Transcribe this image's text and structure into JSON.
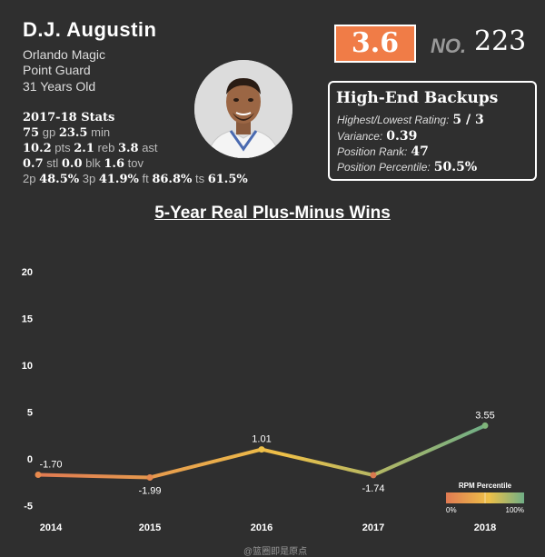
{
  "player": {
    "name": "D.J. Augustin",
    "team": "Orlando Magic",
    "position": "Point Guard",
    "age": "31 Years Old",
    "stats_title": "2017-18 Stats",
    "gp": "75",
    "min": "23.5",
    "pts": "10.2",
    "reb": "2.1",
    "ast": "3.8",
    "stl": "0.7",
    "blk": "0.0",
    "tov": "1.6",
    "p2": "48.5%",
    "p3": "41.9%",
    "ft": "86.8%",
    "ts": "61.5%",
    "labels": {
      "stats": "Stats",
      "gp": "gp",
      "min": "min",
      "pts": "pts",
      "reb": "reb",
      "ast": "ast",
      "stl": "stl",
      "blk": "blk",
      "tov": "tov",
      "p2": "2p",
      "p3": "3p",
      "ft": "ft",
      "ts": "ts"
    }
  },
  "rating": "3.6",
  "rank": {
    "label": "NO.",
    "number": "223"
  },
  "backups": {
    "title": "High-End Backups",
    "highest_lowest_label": "Highest/Lowest Rating:",
    "highest_lowest_value": "5 / 3",
    "variance_label": "Variance:",
    "variance_value": "0.39",
    "position_rank_label": "Position Rank:",
    "position_rank_value": "47",
    "position_percentile_label": "Position Percentile:",
    "position_percentile_value": "50.5%"
  },
  "chart_data": {
    "type": "line",
    "title": "5-Year Real Plus-Minus Wins",
    "x": [
      "2014",
      "2015",
      "2016",
      "2017",
      "2018"
    ],
    "values": [
      -1.7,
      -1.99,
      1.01,
      -1.74,
      3.55
    ],
    "data_labels": [
      "-1.70",
      "-1.99",
      "1.01",
      "-1.74",
      "3.55"
    ],
    "y_ticks": [
      -5,
      0,
      5,
      10,
      15,
      20
    ],
    "ylim": [
      -5.5,
      22
    ],
    "grid": false,
    "legend": {
      "title": "RPM Percentile",
      "min_label": "0%",
      "max_label": "100%",
      "placement": "bottom-right"
    },
    "colors": {
      "low": "#e07a52",
      "mid": "#eec048",
      "high": "#6fae86"
    }
  },
  "watermark": "@篮圈即是原点"
}
